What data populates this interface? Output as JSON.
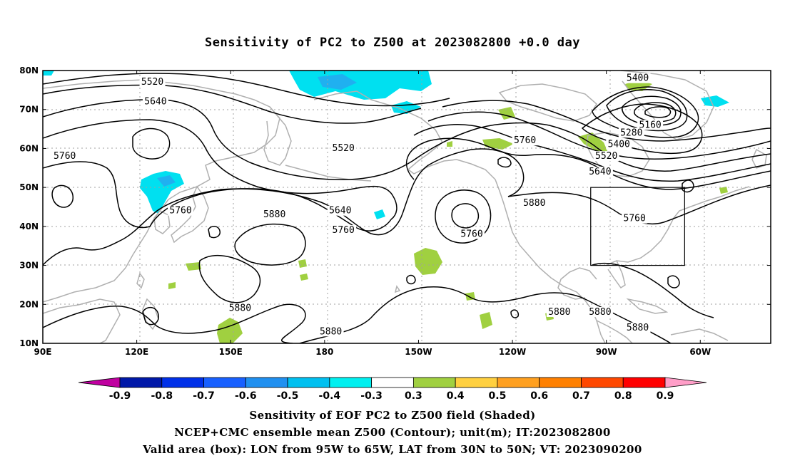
{
  "title": "Sensitivity of PC2 to Z500 at 2023082800 +0.0 day",
  "lat_ticks": [
    "80N",
    "70N",
    "60N",
    "50N",
    "40N",
    "30N",
    "20N",
    "10N"
  ],
  "lon_ticks": [
    "90E",
    "120E",
    "150E",
    "180",
    "150W",
    "120W",
    "90W",
    "60W"
  ],
  "contour_labels": [
    {
      "text": "5520",
      "lon": 125,
      "lat": 76.5
    },
    {
      "text": "5640",
      "lon": 126,
      "lat": 71.5
    },
    {
      "text": "5760",
      "lon": 97,
      "lat": 57.5
    },
    {
      "text": "5760",
      "lon": 134,
      "lat": 43.5
    },
    {
      "text": "5880",
      "lon": 164,
      "lat": 42.5
    },
    {
      "text": "5880",
      "lon": 153,
      "lat": 18.5
    },
    {
      "text": "5880",
      "lon": -178,
      "lat": 12.5
    },
    {
      "text": "5520",
      "lon": -174,
      "lat": 59.5
    },
    {
      "text": "5640",
      "lon": -175,
      "lat": 43.5
    },
    {
      "text": "5760",
      "lon": -174,
      "lat": 38.5
    },
    {
      "text": "5760",
      "lon": -133,
      "lat": 37.5
    },
    {
      "text": "5760",
      "lon": -116,
      "lat": 61.5
    },
    {
      "text": "5880",
      "lon": -113,
      "lat": 45.5
    },
    {
      "text": "5880",
      "lon": -105,
      "lat": 17.5
    },
    {
      "text": "5880",
      "lon": -92,
      "lat": 17.5
    },
    {
      "text": "5880",
      "lon": -80,
      "lat": 13.5
    },
    {
      "text": "5400",
      "lon": -80,
      "lat": 77.5
    },
    {
      "text": "5160",
      "lon": -76,
      "lat": 65.5
    },
    {
      "text": "5280",
      "lon": -82,
      "lat": 63.5
    },
    {
      "text": "5400",
      "lon": -86,
      "lat": 60.5
    },
    {
      "text": "5520",
      "lon": -90,
      "lat": 57.5
    },
    {
      "text": "5640",
      "lon": -92,
      "lat": 53.5
    },
    {
      "text": "5760",
      "lon": -81,
      "lat": 41.5
    }
  ],
  "valid_box": {
    "lon_min": -95,
    "lon_max": -65,
    "lat_min": 30,
    "lat_max": 50
  },
  "colorbar": {
    "colors": [
      "#c000a0",
      "#0018a8",
      "#0030e8",
      "#1860ff",
      "#2090f0",
      "#00c0f0",
      "#00f0f0",
      "#ffffff",
      "#a0d040",
      "#ffd040",
      "#ffa020",
      "#ff8000",
      "#ff4800",
      "#ff0000",
      "#ff9ec8"
    ],
    "labels": [
      "-0.9",
      "-0.8",
      "-0.7",
      "-0.6",
      "-0.5",
      "-0.4",
      "-0.3",
      "0.3",
      "0.4",
      "0.5",
      "0.6",
      "0.7",
      "0.8",
      "0.9"
    ]
  },
  "captions": {
    "line1": "Sensitivity of EOF PC2 to Z500 field (Shaded)",
    "line2": "NCEP+CMC ensemble mean Z500 (Contour); unit(m); IT:2023082800",
    "line3": "Valid area (box): LON from 95W to 65W, LAT from 30N to 50N; VT: 2023090200"
  },
  "colors": {
    "contour": "#000000",
    "coast": "#b0b0b0",
    "grid": "#a0a0a0",
    "negative": "#00e0f0",
    "negative_dark": "#20b0f0",
    "positive": "#a0d040"
  }
}
